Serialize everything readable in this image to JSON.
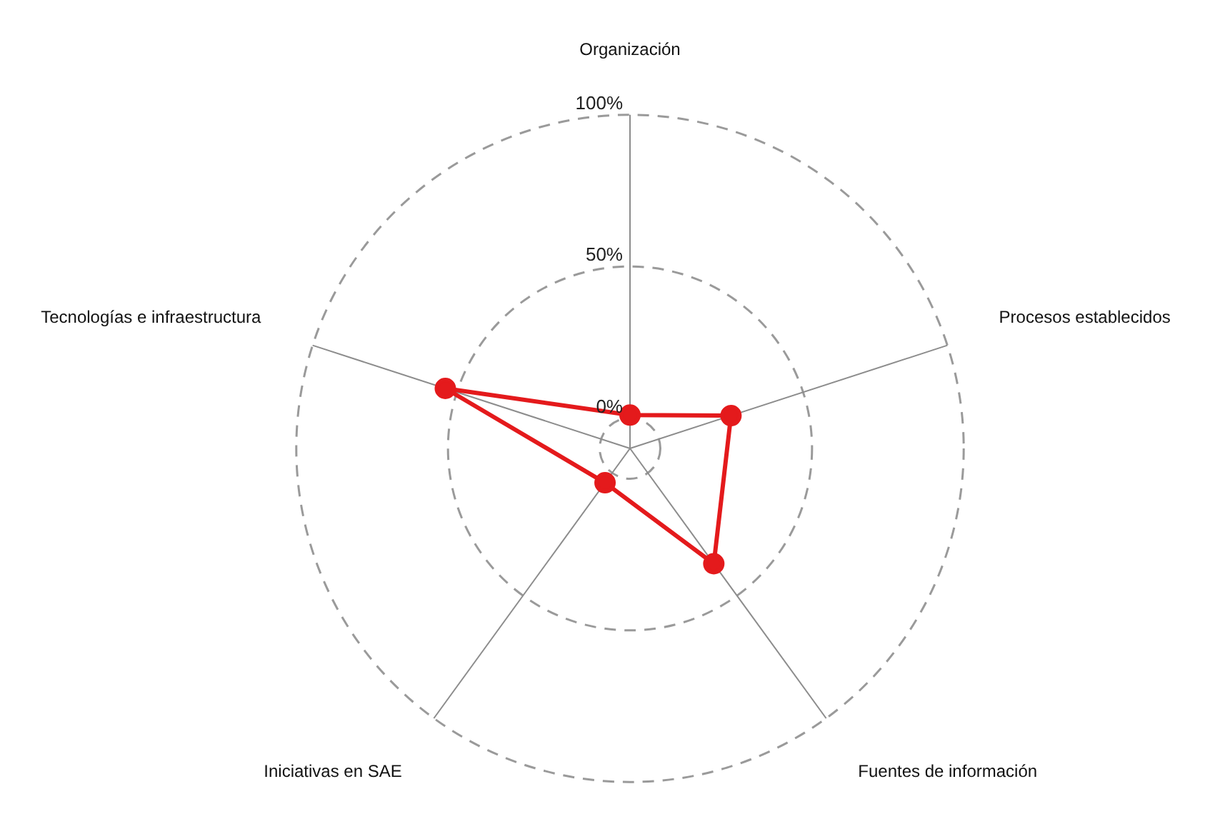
{
  "chart_data": {
    "type": "radar",
    "categories": [
      "Organización",
      "Procesos establecidos",
      "Fuentes de información",
      "Iniciativas en SAE",
      "Tecnologías e infraestructura"
    ],
    "series": [
      {
        "color": "#e41a1c",
        "values": [
          1,
          25,
          37,
          4,
          54
        ]
      }
    ],
    "ylim": [
      -10,
      100
    ],
    "yticks": [
      {
        "value": 0,
        "label": "0%"
      },
      {
        "value": 50,
        "label": "50%"
      },
      {
        "value": 100,
        "label": "100%"
      }
    ],
    "grid": true,
    "legend": false,
    "marker": "circle",
    "line_style": "solid"
  }
}
